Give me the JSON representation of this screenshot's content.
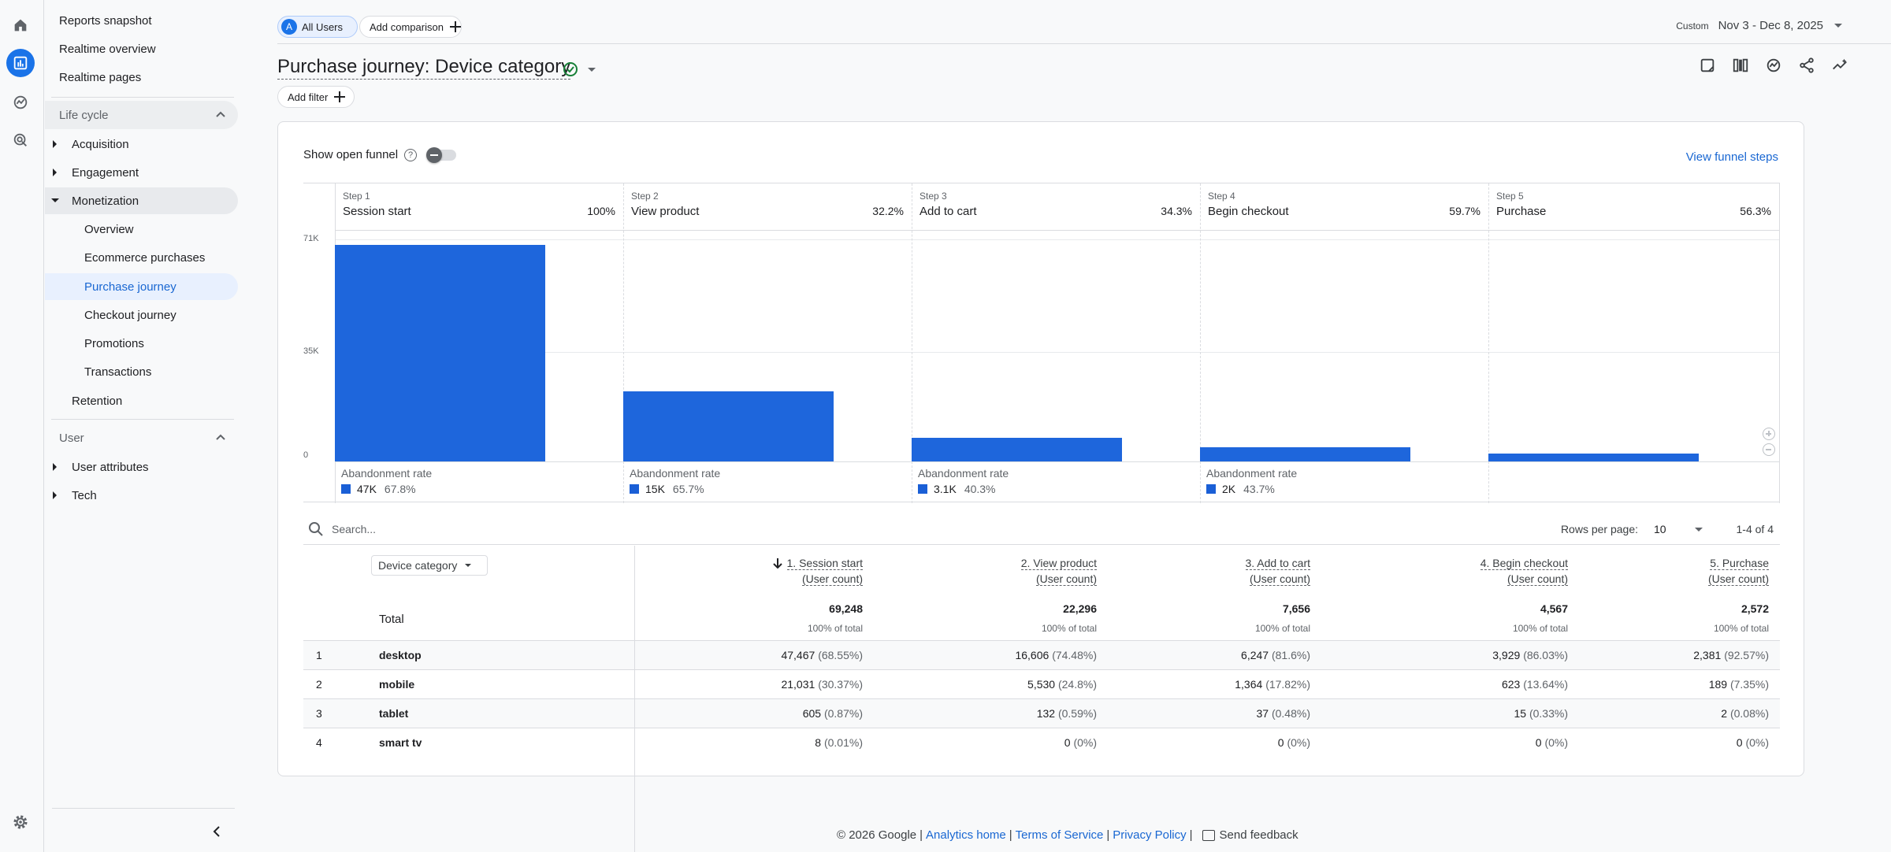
{
  "nav": {
    "top_links": [
      "Reports snapshot",
      "Realtime overview",
      "Realtime pages"
    ],
    "lifecycle_label": "Life cycle",
    "lifecycle_items": {
      "acquisition": "Acquisition",
      "engagement": "Engagement",
      "monetization": "Monetization",
      "monetization_children": [
        "Overview",
        "Ecommerce purchases",
        "Purchase journey",
        "Checkout journey",
        "Promotions",
        "Transactions"
      ],
      "retention": "Retention"
    },
    "user_label": "User",
    "user_items": [
      "User attributes",
      "Tech"
    ]
  },
  "topbar": {
    "segment_badge": "A",
    "segment_label": "All Users",
    "add_comparison": "Add comparison",
    "date_prefix": "Custom",
    "date_range": "Nov 3 - Dec 8, 2025"
  },
  "page": {
    "title": "Purchase journey: Device category",
    "add_filter": "Add filter"
  },
  "funnel": {
    "show_open_funnel": "Show open funnel",
    "view_funnel_steps": "View funnel steps",
    "abandonment_label": "Abandonment rate",
    "y_ticks": [
      "71K",
      "35K",
      "0"
    ],
    "steps": [
      {
        "step": "Step 1",
        "name": "Session start",
        "pct": "100%",
        "abandon_count": "47K",
        "abandon_pct": "67.8%"
      },
      {
        "step": "Step 2",
        "name": "View product",
        "pct": "32.2%",
        "abandon_count": "15K",
        "abandon_pct": "65.7%"
      },
      {
        "step": "Step 3",
        "name": "Add to cart",
        "pct": "34.3%",
        "abandon_count": "3.1K",
        "abandon_pct": "40.3%"
      },
      {
        "step": "Step 4",
        "name": "Begin checkout",
        "pct": "59.7%",
        "abandon_count": "2K",
        "abandon_pct": "43.7%"
      },
      {
        "step": "Step 5",
        "name": "Purchase",
        "pct": "56.3%",
        "abandon_count": "",
        "abandon_pct": ""
      }
    ]
  },
  "chart_data": {
    "type": "bar",
    "categories": [
      "Session start",
      "View product",
      "Add to cart",
      "Begin checkout",
      "Purchase"
    ],
    "values": [
      69248,
      22296,
      7656,
      4567,
      2572
    ],
    "ylim": [
      0,
      71000
    ],
    "y_ticks": [
      "71K",
      "35K",
      "0"
    ],
    "color": "#1e66dc"
  },
  "table": {
    "search_placeholder": "Search...",
    "rows_per_page_label": "Rows per page:",
    "rows_per_page": "10",
    "range": "1-4 of 4",
    "dimension": "Device category",
    "columns": [
      {
        "line1": "1. Session start",
        "line2": "(User count)"
      },
      {
        "line1": "2. View product",
        "line2": "(User count)"
      },
      {
        "line1": "3. Add to cart",
        "line2": "(User count)"
      },
      {
        "line1": "4. Begin checkout",
        "line2": "(User count)"
      },
      {
        "line1": "5. Purchase",
        "line2": "(User count)"
      }
    ],
    "total_label": "Total",
    "totals": [
      "69,248",
      "22,296",
      "7,656",
      "4,567",
      "2,572"
    ],
    "total_sub": "100% of total",
    "rows": [
      {
        "idx": "1",
        "dim": "desktop",
        "cells": [
          [
            "47,467",
            "(68.55%)"
          ],
          [
            "16,606",
            "(74.48%)"
          ],
          [
            "6,247",
            "(81.6%)"
          ],
          [
            "3,929",
            "(86.03%)"
          ],
          [
            "2,381",
            "(92.57%)"
          ]
        ]
      },
      {
        "idx": "2",
        "dim": "mobile",
        "cells": [
          [
            "21,031",
            "(30.37%)"
          ],
          [
            "5,530",
            "(24.8%)"
          ],
          [
            "1,364",
            "(17.82%)"
          ],
          [
            "623",
            "(13.64%)"
          ],
          [
            "189",
            "(7.35%)"
          ]
        ]
      },
      {
        "idx": "3",
        "dim": "tablet",
        "cells": [
          [
            "605",
            "(0.87%)"
          ],
          [
            "132",
            "(0.59%)"
          ],
          [
            "37",
            "(0.48%)"
          ],
          [
            "15",
            "(0.33%)"
          ],
          [
            "2",
            "(0.08%)"
          ]
        ]
      },
      {
        "idx": "4",
        "dim": "smart tv",
        "cells": [
          [
            "8",
            "(0.01%)"
          ],
          [
            "0",
            "(0%)"
          ],
          [
            "0",
            "(0%)"
          ],
          [
            "0",
            "(0%)"
          ],
          [
            "0",
            "(0%)"
          ]
        ]
      }
    ]
  },
  "footer": {
    "copyright": "© 2026 Google",
    "analytics_home": "Analytics home",
    "terms": "Terms of Service",
    "privacy": "Privacy Policy",
    "feedback": "Send feedback"
  }
}
